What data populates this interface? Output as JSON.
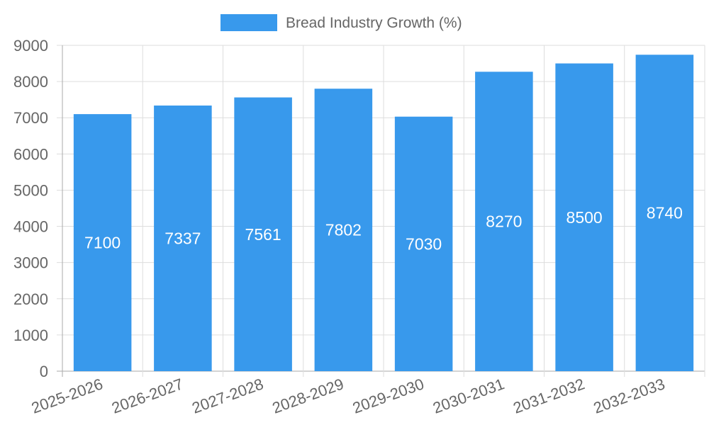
{
  "chart_data": {
    "type": "bar",
    "legend": "Bread Industry Growth (%)",
    "legend_position": "top",
    "categories": [
      "2025-2026",
      "2026-2027",
      "2027-2028",
      "2028-2029",
      "2029-2030",
      "2030-2031",
      "2031-2032",
      "2032-2033"
    ],
    "series": [
      {
        "name": "Bread Industry Growth (%)",
        "values": [
          7100,
          7337,
          7561,
          7802,
          7030,
          8270,
          8500,
          8740
        ]
      }
    ],
    "ylim": [
      0,
      9000
    ],
    "yticks": [
      0,
      1000,
      2000,
      3000,
      4000,
      5000,
      6000,
      7000,
      8000,
      9000
    ],
    "grid": true,
    "data_labels": true,
    "colors": {
      "bar": "#3899ec",
      "grid": "#dddddd",
      "axis": "#aaaaaa",
      "text": "#666666",
      "label": "#ffffff"
    }
  }
}
